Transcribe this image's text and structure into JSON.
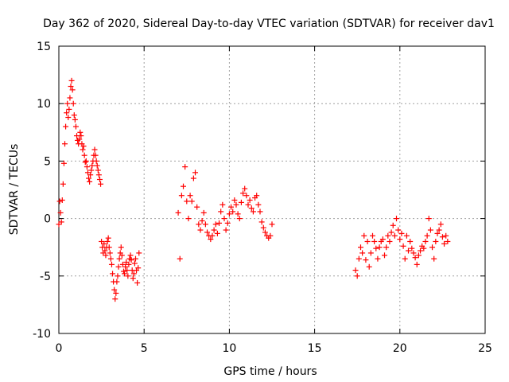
{
  "chart_data": {
    "type": "scatter",
    "title": "Day 362 of 2020, Sidereal Day-to-day VTEC variation (SDTVAR) for receiver dav1",
    "xlabel": "GPS time / hours",
    "ylabel": "SDTVAR / TECUs",
    "xlim": [
      0,
      25
    ],
    "ylim": [
      -10,
      15
    ],
    "xticks": [
      0,
      5,
      10,
      15,
      20,
      25
    ],
    "yticks": [
      -10,
      -5,
      0,
      5,
      10,
      15
    ],
    "xtick_labels": [
      "0",
      "5",
      "10",
      "15",
      "20",
      "25"
    ],
    "ytick_labels": [
      "-10",
      "-5",
      "0",
      "5",
      "10",
      "15"
    ],
    "grid": true,
    "marker": "+",
    "color": "#ff0000",
    "series": [
      {
        "name": "SDTVAR",
        "segments": [
          {
            "x": [
              0.0,
              0.05,
              0.1,
              0.15,
              0.2,
              0.25,
              0.3,
              0.35,
              0.4,
              0.45,
              0.5,
              0.55,
              0.6,
              0.65,
              0.7,
              0.75,
              0.8,
              0.85,
              0.9,
              0.95,
              1.0,
              1.05,
              1.1,
              1.15,
              1.2,
              1.25,
              1.3,
              1.35,
              1.4,
              1.45,
              1.5,
              1.55,
              1.6,
              1.65,
              1.7,
              1.75,
              1.8,
              1.85,
              1.9,
              1.95,
              2.0,
              2.05,
              2.1,
              2.15,
              2.2,
              2.25,
              2.3,
              2.35,
              2.4,
              2.45,
              2.5,
              2.55,
              2.6,
              2.65,
              2.7,
              2.75,
              2.8,
              2.85,
              2.9,
              2.95,
              3.0,
              3.05,
              3.1,
              3.15,
              3.2,
              3.25,
              3.3,
              3.35,
              3.4,
              3.45,
              3.5,
              3.55,
              3.6,
              3.65,
              3.7,
              3.75,
              3.8,
              3.85,
              3.9,
              3.95,
              4.0,
              4.05,
              4.1,
              4.15,
              4.2,
              4.25,
              4.3,
              4.35,
              4.4,
              4.45,
              4.5,
              4.55,
              4.6,
              4.65,
              4.7
            ],
            "y": [
              -0.5,
              1.5,
              0.5,
              -0.3,
              1.6,
              3.0,
              4.8,
              6.5,
              8.0,
              9.2,
              10.0,
              8.8,
              9.5,
              10.5,
              11.5,
              12.0,
              11.2,
              10.0,
              9.0,
              8.6,
              8.0,
              7.2,
              6.8,
              6.5,
              6.9,
              7.5,
              7.2,
              6.5,
              6.0,
              6.3,
              5.5,
              4.9,
              5.0,
              4.5,
              4.0,
              3.5,
              3.2,
              3.8,
              4.2,
              4.6,
              5.0,
              5.5,
              6.0,
              5.5,
              5.0,
              4.6,
              4.2,
              3.8,
              3.4,
              3.0,
              -2.0,
              -2.5,
              -3.0,
              -2.2,
              -2.8,
              -3.2,
              -2.5,
              -2.0,
              -1.7,
              -2.5,
              -3.0,
              -3.5,
              -4.0,
              -4.8,
              -5.5,
              -6.2,
              -7.0,
              -6.5,
              -5.5,
              -5.0,
              -4.2,
              -3.5,
              -3.0,
              -2.5,
              -3.2,
              -4.0,
              -4.6,
              -4.8,
              -4.2,
              -3.8,
              -4.5,
              -5.0,
              -4.0,
              -3.5,
              -3.2,
              -3.6,
              -4.5,
              -5.2,
              -4.8,
              -3.9,
              -3.5,
              -4.5,
              -5.6,
              -4.3,
              -3.0
            ]
          },
          {
            "x": [
              7.0,
              7.1,
              7.2,
              7.3,
              7.4,
              7.5,
              7.6,
              7.7,
              7.8,
              7.9,
              8.0,
              8.1,
              8.2,
              8.3,
              8.4,
              8.5,
              8.6,
              8.7,
              8.8,
              8.9,
              9.0,
              9.1,
              9.2,
              9.3,
              9.4,
              9.5,
              9.6,
              9.7,
              9.8,
              9.9,
              10.0,
              10.1,
              10.2,
              10.3,
              10.4,
              10.5,
              10.6,
              10.7,
              10.8,
              10.9,
              11.0,
              11.1,
              11.2,
              11.3,
              11.4,
              11.5,
              11.6,
              11.7,
              11.8,
              11.9,
              12.0,
              12.1,
              12.2,
              12.3,
              12.4,
              12.5
            ],
            "y": [
              0.5,
              -3.5,
              2.0,
              2.8,
              4.5,
              1.5,
              0.0,
              2.0,
              1.5,
              3.5,
              4.0,
              1.0,
              -0.5,
              -1.0,
              -0.2,
              0.5,
              -0.5,
              -1.2,
              -1.5,
              -1.8,
              -1.5,
              -1.0,
              -0.5,
              -1.3,
              -0.4,
              0.6,
              1.2,
              0.0,
              -1.0,
              -0.4,
              0.4,
              1.0,
              0.6,
              1.6,
              1.2,
              0.4,
              0.0,
              1.4,
              2.2,
              2.6,
              2.0,
              1.2,
              1.6,
              0.9,
              0.6,
              1.8,
              2.0,
              1.2,
              0.6,
              -0.3,
              -0.8,
              -1.2,
              -1.5,
              -1.7,
              -1.5,
              -0.5
            ]
          },
          {
            "x": [
              17.4,
              17.5,
              17.6,
              17.7,
              17.8,
              17.9,
              18.0,
              18.1,
              18.2,
              18.3,
              18.4,
              18.5,
              18.6,
              18.7,
              18.8,
              18.9,
              19.0,
              19.1,
              19.2,
              19.3,
              19.4,
              19.5,
              19.6,
              19.7,
              19.8,
              19.9,
              20.0,
              20.1,
              20.2,
              20.3,
              20.4,
              20.5,
              20.6,
              20.7,
              20.8,
              20.9,
              21.0,
              21.1,
              21.2,
              21.3,
              21.4,
              21.5,
              21.6,
              21.7,
              21.8,
              21.9,
              22.0,
              22.1,
              22.2,
              22.3,
              22.4,
              22.5,
              22.6,
              22.7,
              22.8
            ],
            "y": [
              -4.5,
              -5.0,
              -3.5,
              -2.5,
              -3.0,
              -1.5,
              -3.6,
              -2.0,
              -4.2,
              -3.0,
              -1.5,
              -2.0,
              -2.6,
              -3.5,
              -2.5,
              -2.0,
              -1.8,
              -3.2,
              -2.5,
              -1.5,
              -2.0,
              -1.2,
              -0.6,
              -1.5,
              0.0,
              -1.0,
              -1.8,
              -1.3,
              -2.4,
              -3.5,
              -1.5,
              -2.8,
              -2.0,
              -2.6,
              -3.0,
              -3.4,
              -4.0,
              -3.2,
              -2.8,
              -2.4,
              -2.6,
              -2.0,
              -1.5,
              0.0,
              -1.0,
              -2.5,
              -3.5,
              -2.0,
              -1.3,
              -1.0,
              -0.5,
              -1.6,
              -2.2,
              -1.5,
              -2.0
            ]
          }
        ]
      }
    ]
  }
}
